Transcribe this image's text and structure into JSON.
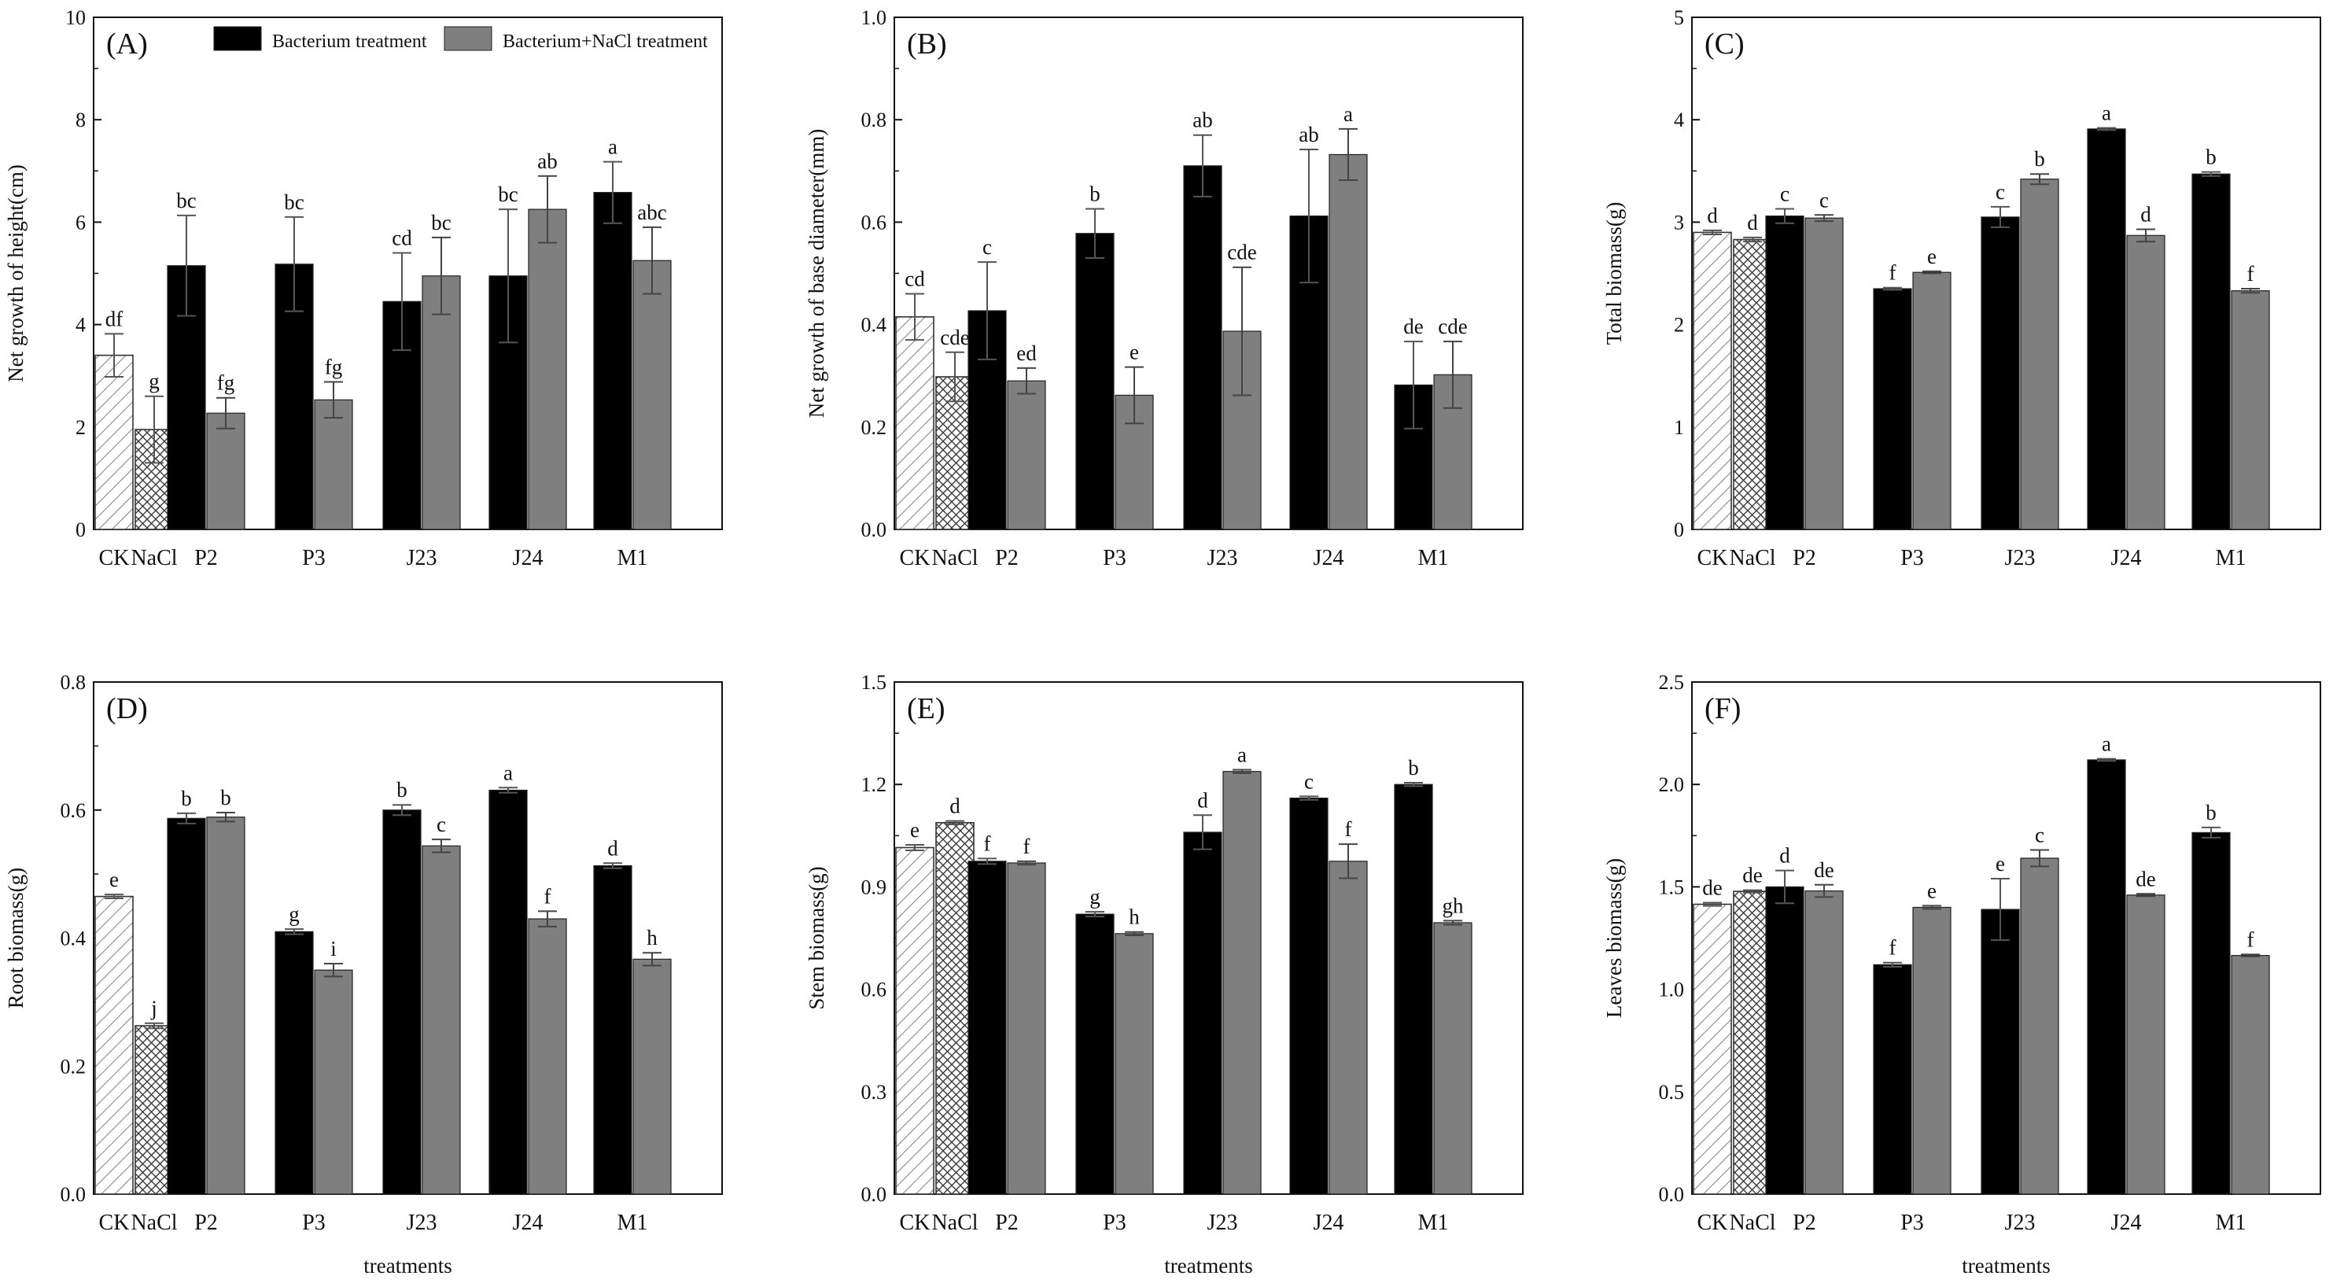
{
  "legend": {
    "bacterium": "Bacterium treatment",
    "nacl": "Bacterium+NaCl treatment"
  },
  "colors": {
    "bacterium": "#000000",
    "nacl": "#7f7f7f",
    "axis": "#111111"
  },
  "chart_data": [
    {
      "type": "bar",
      "panel": "(A)",
      "ylabel": "Net growth of height(cm)",
      "xlabel": "",
      "ylim": [
        0,
        10
      ],
      "yticks": [
        0,
        2,
        4,
        6,
        8,
        10
      ],
      "ytick_labels": [
        "0",
        "2",
        "4",
        "6",
        "8",
        "10"
      ],
      "controls": [
        {
          "name": "CK",
          "value": 3.4,
          "err": 0.42,
          "label": "df",
          "pattern": "hatch"
        },
        {
          "name": "NaCl",
          "value": 1.95,
          "err": 0.65,
          "label": "g",
          "pattern": "cross"
        }
      ],
      "categories": [
        "P2",
        "P3",
        "J23",
        "J24",
        "M1"
      ],
      "series": [
        {
          "name": "Bacterium treatment",
          "values": [
            5.15,
            5.18,
            4.45,
            4.95,
            6.58
          ],
          "errors": [
            0.98,
            0.92,
            0.95,
            1.3,
            0.6
          ],
          "labels": [
            "bc",
            "bc",
            "cd",
            "bc",
            "a"
          ]
        },
        {
          "name": "Bacterium+NaCl treatment",
          "values": [
            2.27,
            2.53,
            4.95,
            6.25,
            5.25
          ],
          "errors": [
            0.3,
            0.35,
            0.75,
            0.65,
            0.65
          ],
          "labels": [
            "fg",
            "fg",
            "bc",
            "ab",
            "abc"
          ]
        }
      ]
    },
    {
      "type": "bar",
      "panel": "(B)",
      "ylabel": "Net growth of base diameter(mm)",
      "xlabel": "",
      "ylim": [
        0,
        1
      ],
      "yticks": [
        0,
        0.2,
        0.4,
        0.6,
        0.8,
        1.0
      ],
      "ytick_labels": [
        "0.0",
        "0.2",
        "0.4",
        "0.6",
        "0.8",
        "1.0"
      ],
      "controls": [
        {
          "name": "CK",
          "value": 0.415,
          "err": 0.045,
          "label": "cd",
          "pattern": "hatch"
        },
        {
          "name": "NaCl",
          "value": 0.298,
          "err": 0.048,
          "label": "cde",
          "pattern": "cross"
        }
      ],
      "categories": [
        "P2",
        "P3",
        "J23",
        "J24",
        "M1"
      ],
      "series": [
        {
          "name": "Bacterium treatment",
          "values": [
            0.427,
            0.578,
            0.71,
            0.612,
            0.282
          ],
          "errors": [
            0.095,
            0.048,
            0.06,
            0.13,
            0.085
          ],
          "labels": [
            "c",
            "b",
            "ab",
            "ab",
            "de"
          ]
        },
        {
          "name": "Bacterium+NaCl treatment",
          "values": [
            0.29,
            0.262,
            0.387,
            0.732,
            0.302
          ],
          "errors": [
            0.025,
            0.055,
            0.125,
            0.05,
            0.065
          ],
          "labels": [
            "ed",
            "e",
            "cde",
            "a",
            "cde"
          ]
        }
      ]
    },
    {
      "type": "bar",
      "panel": "(C)",
      "ylabel": "Total biomass(g)",
      "xlabel": "",
      "ylim": [
        0,
        5
      ],
      "yticks": [
        0,
        1,
        2,
        3,
        4,
        5
      ],
      "ytick_labels": [
        "0",
        "1",
        "2",
        "3",
        "4",
        "5"
      ],
      "controls": [
        {
          "name": "CK",
          "value": 2.9,
          "err": 0.02,
          "label": "d",
          "pattern": "hatch"
        },
        {
          "name": "NaCl",
          "value": 2.83,
          "err": 0.02,
          "label": "d",
          "pattern": "cross"
        }
      ],
      "categories": [
        "P2",
        "P3",
        "J23",
        "J24",
        "M1"
      ],
      "series": [
        {
          "name": "Bacterium treatment",
          "values": [
            3.06,
            2.35,
            3.05,
            3.91,
            3.47
          ],
          "errors": [
            0.07,
            0.01,
            0.1,
            0.01,
            0.02
          ],
          "labels": [
            "c",
            "f",
            "c",
            "a",
            "b"
          ]
        },
        {
          "name": "Bacterium+NaCl treatment",
          "values": [
            3.04,
            2.51,
            3.42,
            2.87,
            2.33
          ],
          "errors": [
            0.03,
            0.01,
            0.05,
            0.06,
            0.02
          ],
          "labels": [
            "c",
            "e",
            "b",
            "d",
            "f"
          ]
        }
      ]
    },
    {
      "type": "bar",
      "panel": "(D)",
      "ylabel": "Root biomass(g)",
      "xlabel": "treatments",
      "ylim": [
        0,
        0.8
      ],
      "yticks": [
        0,
        0.2,
        0.4,
        0.6,
        0.8
      ],
      "ytick_labels": [
        "0.0",
        "0.2",
        "0.4",
        "0.6",
        "0.8"
      ],
      "controls": [
        {
          "name": "CK",
          "value": 0.465,
          "err": 0.003,
          "label": "e",
          "pattern": "hatch"
        },
        {
          "name": "NaCl",
          "value": 0.263,
          "err": 0.004,
          "label": "j",
          "pattern": "cross"
        }
      ],
      "categories": [
        "P2",
        "P3",
        "J23",
        "J24",
        "M1"
      ],
      "series": [
        {
          "name": "Bacterium treatment",
          "values": [
            0.587,
            0.41,
            0.6,
            0.631,
            0.513
          ],
          "errors": [
            0.008,
            0.004,
            0.008,
            0.004,
            0.004
          ],
          "labels": [
            "b",
            "g",
            "b",
            "a",
            "d"
          ]
        },
        {
          "name": "Bacterium+NaCl treatment",
          "values": [
            0.589,
            0.35,
            0.544,
            0.43,
            0.367
          ],
          "errors": [
            0.007,
            0.01,
            0.01,
            0.012,
            0.01
          ],
          "labels": [
            "b",
            "i",
            "c",
            "f",
            "h"
          ]
        }
      ]
    },
    {
      "type": "bar",
      "panel": "(E)",
      "ylabel": "Stem biomass(g)",
      "xlabel": "treatments",
      "ylim": [
        0,
        1.5
      ],
      "yticks": [
        0,
        0.3,
        0.6,
        0.9,
        1.2,
        1.5
      ],
      "ytick_labels": [
        "0.0",
        "0.3",
        "0.6",
        "0.9",
        "1.2",
        "1.5"
      ],
      "controls": [
        {
          "name": "CK",
          "value": 1.015,
          "err": 0.008,
          "label": "e",
          "pattern": "hatch"
        },
        {
          "name": "NaCl",
          "value": 1.088,
          "err": 0.005,
          "label": "d",
          "pattern": "cross"
        }
      ],
      "categories": [
        "P2",
        "P3",
        "J23",
        "J24",
        "M1"
      ],
      "series": [
        {
          "name": "Bacterium treatment",
          "values": [
            0.975,
            0.82,
            1.06,
            1.16,
            1.2
          ],
          "errors": [
            0.008,
            0.007,
            0.05,
            0.005,
            0.005
          ],
          "labels": [
            "f",
            "g",
            "d",
            "c",
            "b"
          ]
        },
        {
          "name": "Bacterium+NaCl treatment",
          "values": [
            0.97,
            0.763,
            1.238,
            0.975,
            0.795
          ],
          "errors": [
            0.005,
            0.005,
            0.005,
            0.05,
            0.006
          ],
          "labels": [
            "f",
            "h",
            "a",
            "f",
            "gh"
          ]
        }
      ]
    },
    {
      "type": "bar",
      "panel": "(F)",
      "ylabel": "Leaves biomass(g)",
      "xlabel": "treatments",
      "ylim": [
        0,
        2.5
      ],
      "yticks": [
        0,
        0.5,
        1.0,
        1.5,
        2.0,
        2.5
      ],
      "ytick_labels": [
        "0.0",
        "0.5",
        "1.0",
        "1.5",
        "2.0",
        "2.5"
      ],
      "controls": [
        {
          "name": "CK",
          "value": 1.415,
          "err": 0.008,
          "label": "de",
          "pattern": "hatch"
        },
        {
          "name": "NaCl",
          "value": 1.478,
          "err": 0.006,
          "label": "de",
          "pattern": "cross"
        }
      ],
      "categories": [
        "P2",
        "P3",
        "J23",
        "J24",
        "M1"
      ],
      "series": [
        {
          "name": "Bacterium treatment",
          "values": [
            1.5,
            1.12,
            1.39,
            2.12,
            1.765
          ],
          "errors": [
            0.08,
            0.01,
            0.15,
            0.005,
            0.025
          ],
          "labels": [
            "d",
            "f",
            "e",
            "a",
            "b"
          ]
        },
        {
          "name": "Bacterium+NaCl treatment",
          "values": [
            1.48,
            1.4,
            1.64,
            1.46,
            1.165
          ],
          "errors": [
            0.03,
            0.008,
            0.04,
            0.006,
            0.005
          ],
          "labels": [
            "de",
            "e",
            "c",
            "de",
            "f"
          ]
        }
      ]
    }
  ]
}
